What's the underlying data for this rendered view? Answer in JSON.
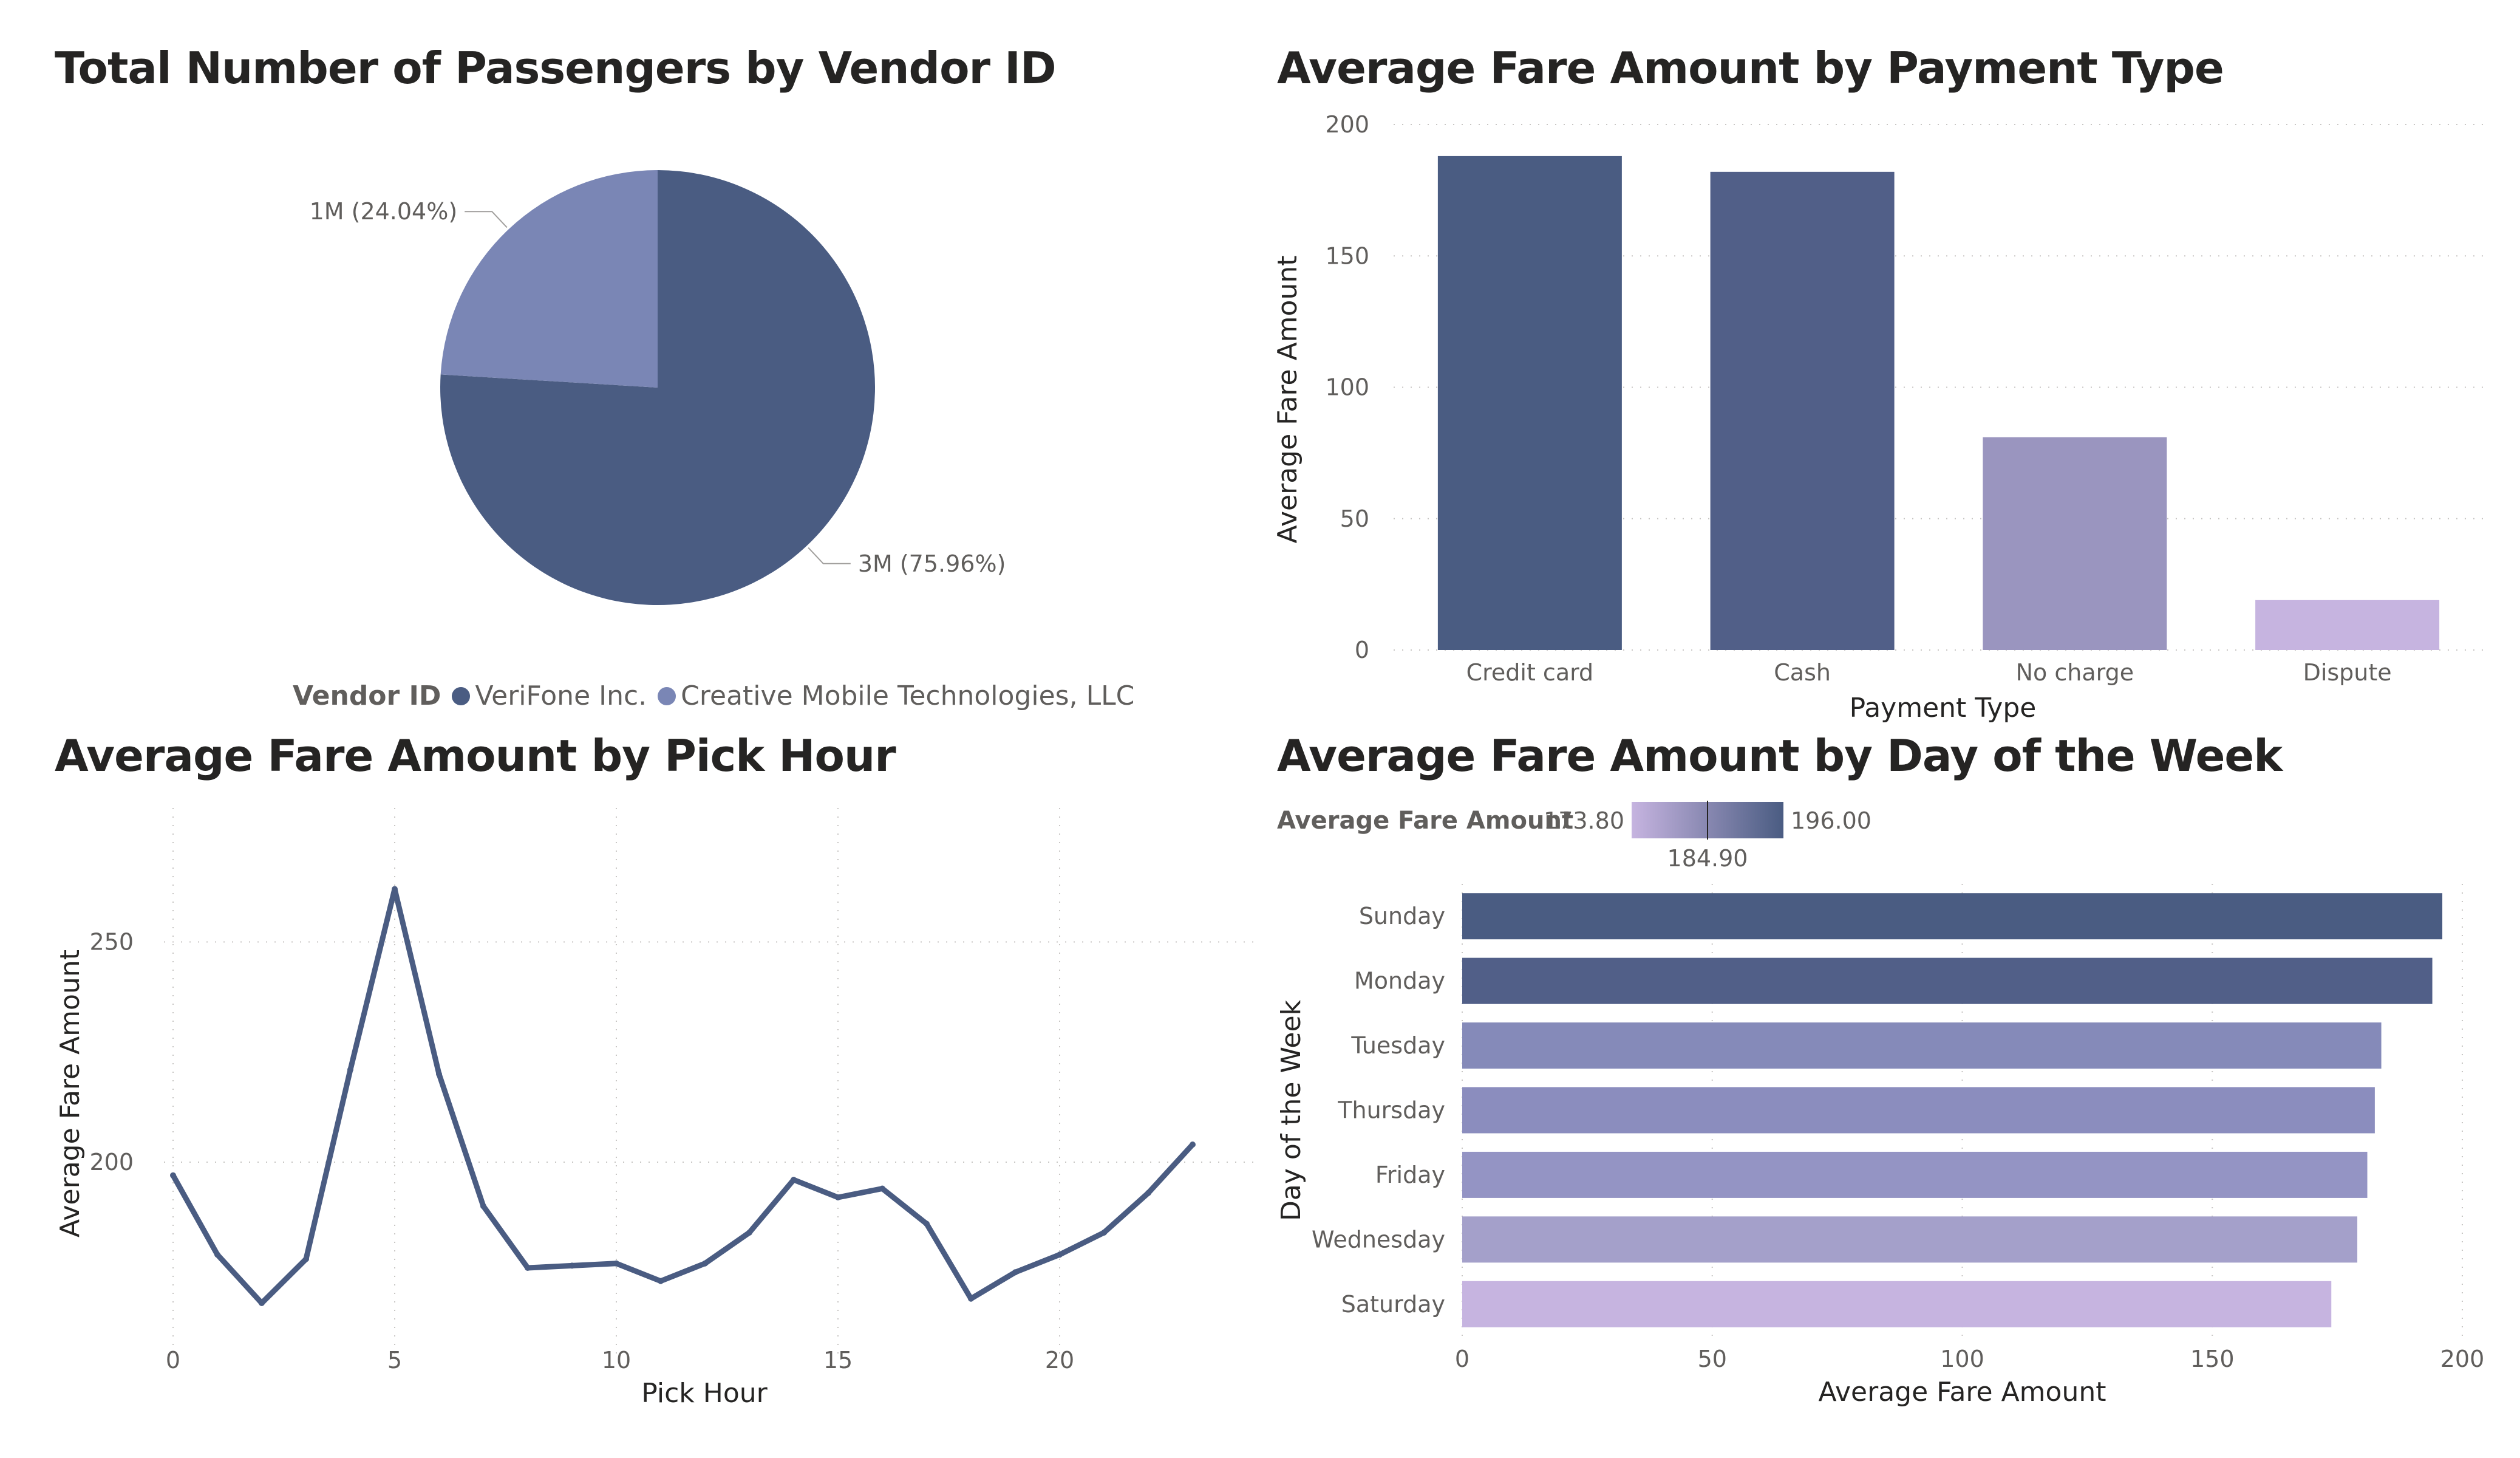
{
  "chart_data": [
    {
      "type": "pie",
      "title": "Total Number of Passengers by Vendor ID",
      "legend_title": "Vendor ID",
      "legend_position": "bottom",
      "slices": [
        {
          "name": "VeriFone Inc.",
          "value": 75.96,
          "label": "3M (75.96%)",
          "color": "#4A5C82"
        },
        {
          "name": "Creative Mobile Technologies, LLC",
          "value": 24.04,
          "label": "1M (24.04%)",
          "color": "#7A86B5"
        }
      ]
    },
    {
      "type": "bar",
      "title": "Average Fare Amount by Payment Type",
      "xlabel": "Payment Type",
      "ylabel": "Average Fare Amount",
      "ylim": [
        0,
        200
      ],
      "yticks": [
        0,
        50,
        100,
        150,
        200
      ],
      "grid": true,
      "categories": [
        "Credit card",
        "Cash",
        "No charge",
        "Dispute"
      ],
      "values": [
        188,
        182,
        81,
        19
      ],
      "colors": [
        "#4A5C82",
        "#515F88",
        "#9A95BF",
        "#C6B4E0"
      ]
    },
    {
      "type": "line",
      "title": "Average Fare Amount by Pick Hour",
      "xlabel": "Pick Hour",
      "ylabel": "Average Fare Amount",
      "xlim": [
        0,
        24.5
      ],
      "ylim": [
        164,
        276
      ],
      "xticks": [
        0,
        5,
        10,
        15,
        20
      ],
      "yticks": [
        200,
        250
      ],
      "grid": true,
      "color": "#4A5C82",
      "x": [
        0,
        1,
        2,
        3,
        4,
        5,
        6,
        7,
        8,
        9,
        10,
        11,
        12,
        13,
        14,
        15,
        16,
        17,
        18,
        19,
        20,
        21,
        22,
        23
      ],
      "y": [
        197,
        179,
        168,
        178,
        221,
        262,
        220,
        190,
        176,
        176.5,
        177,
        173,
        177,
        184,
        196,
        192,
        194,
        186,
        169,
        175,
        179,
        184,
        193,
        204
      ]
    },
    {
      "type": "bar",
      "orientation": "horizontal",
      "title": "Average Fare Amount by Day of the Week",
      "xlabel": "Average Fare Amount",
      "ylabel": "Day of the Week",
      "xlim": [
        0,
        200
      ],
      "xticks": [
        0,
        50,
        100,
        150,
        200
      ],
      "grid": true,
      "color_scale": {
        "label": "Average Fare Amount",
        "min": "173.80",
        "max": "196.00",
        "mid": "184.90",
        "min_color": "#C6B4E0",
        "max_color": "#4A5C82"
      },
      "categories": [
        "Sunday",
        "Monday",
        "Tuesday",
        "Thursday",
        "Friday",
        "Wednesday",
        "Saturday"
      ],
      "values": [
        196,
        194,
        183.8,
        182.5,
        181,
        179,
        173.8
      ],
      "colors": [
        "#4A5C82",
        "#515F88",
        "#858AB9",
        "#8B8DBE",
        "#9494C4",
        "#A4A0CA",
        "#C6B4E0"
      ]
    }
  ]
}
